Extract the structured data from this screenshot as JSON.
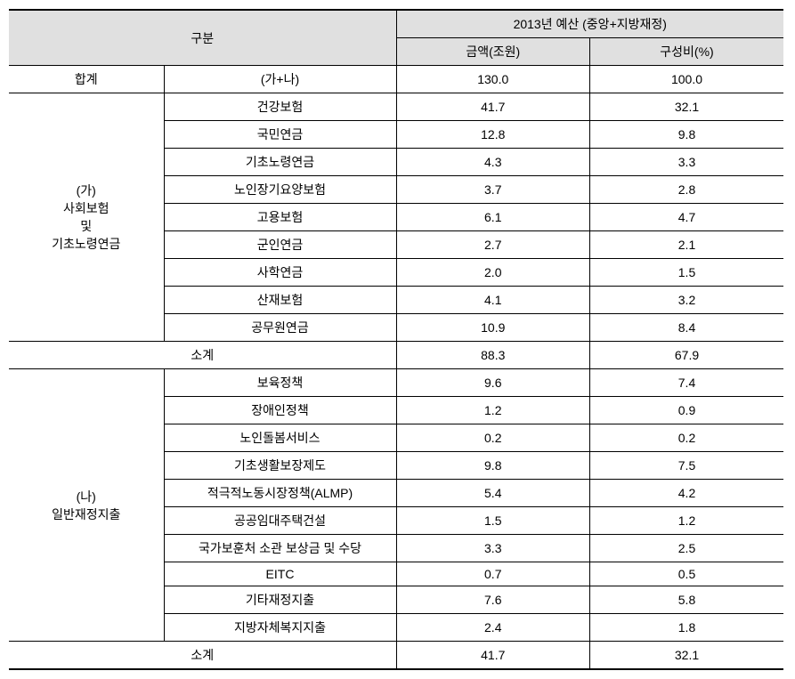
{
  "headers": {
    "category": "구분",
    "budget_title": "2013년 예산 (중앙+지방재정)",
    "amount": "금액(조원)",
    "ratio": "구성비(%)"
  },
  "total": {
    "label": "합계",
    "formula": "(가+나)",
    "amount": "130.0",
    "ratio": "100.0"
  },
  "sectionA": {
    "label": "(가)\n사회보험\n및\n기초노령연금",
    "rows": [
      {
        "name": "건강보험",
        "amount": "41.7",
        "ratio": "32.1"
      },
      {
        "name": "국민연금",
        "amount": "12.8",
        "ratio": "9.8"
      },
      {
        "name": "기초노령연금",
        "amount": "4.3",
        "ratio": "3.3"
      },
      {
        "name": "노인장기요양보험",
        "amount": "3.7",
        "ratio": "2.8"
      },
      {
        "name": "고용보험",
        "amount": "6.1",
        "ratio": "4.7"
      },
      {
        "name": "군인연금",
        "amount": "2.7",
        "ratio": "2.1"
      },
      {
        "name": "사학연금",
        "amount": "2.0",
        "ratio": "1.5"
      },
      {
        "name": "산재보험",
        "amount": "4.1",
        "ratio": "3.2"
      },
      {
        "name": "공무원연금",
        "amount": "10.9",
        "ratio": "8.4"
      }
    ],
    "subtotal": {
      "label": "소계",
      "amount": "88.3",
      "ratio": "67.9"
    }
  },
  "sectionB": {
    "label": "(나)\n일반재정지출",
    "rows": [
      {
        "name": "보육정책",
        "amount": "9.6",
        "ratio": "7.4"
      },
      {
        "name": "장애인정책",
        "amount": "1.2",
        "ratio": "0.9"
      },
      {
        "name": "노인돌봄서비스",
        "amount": "0.2",
        "ratio": "0.2"
      },
      {
        "name": "기초생활보장제도",
        "amount": "9.8",
        "ratio": "7.5"
      },
      {
        "name": "적극적노동시장정책(ALMP)",
        "amount": "5.4",
        "ratio": "4.2"
      },
      {
        "name": "공공임대주택건설",
        "amount": "1.5",
        "ratio": "1.2"
      },
      {
        "name": "국가보훈처 소관 보상금 및 수당",
        "amount": "3.3",
        "ratio": "2.5"
      },
      {
        "name": "EITC",
        "amount": "0.7",
        "ratio": "0.5"
      },
      {
        "name": "기타재정지출",
        "amount": "7.6",
        "ratio": "5.8"
      },
      {
        "name": "지방자체복지지출",
        "amount": "2.4",
        "ratio": "1.8"
      }
    ],
    "subtotal": {
      "label": "소계",
      "amount": "41.7",
      "ratio": "32.1"
    }
  }
}
